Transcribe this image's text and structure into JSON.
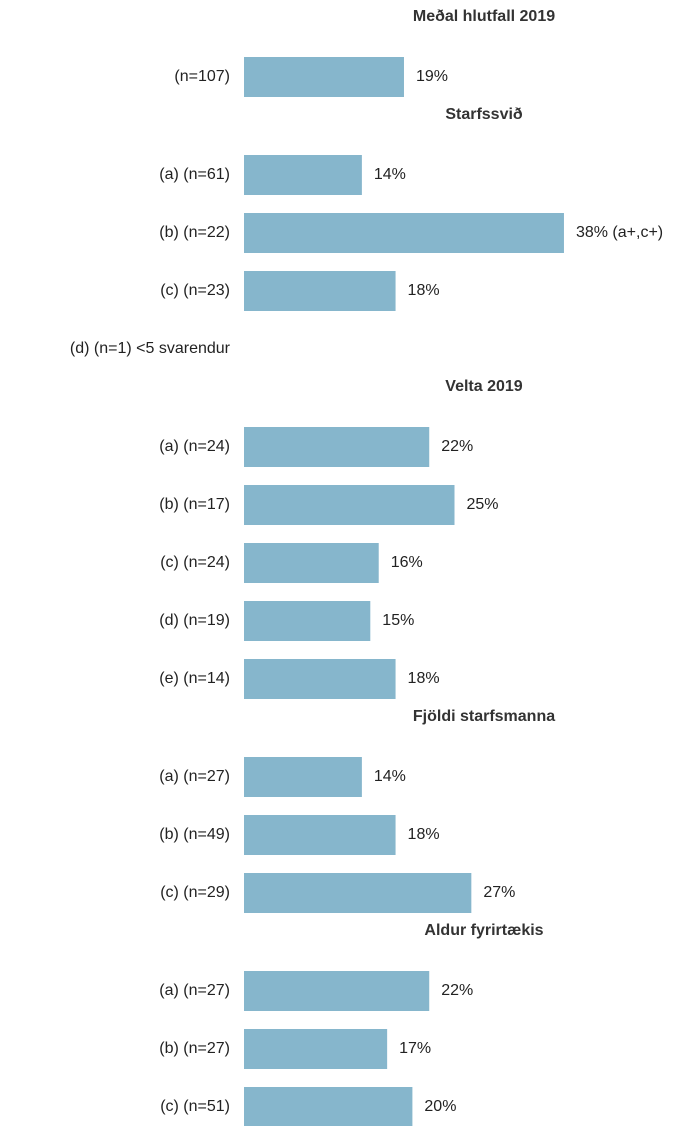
{
  "chart_data": [
    {
      "type": "bar",
      "title": "Meðal hlutfall 2019",
      "categories": [
        "(n=107)"
      ],
      "values": [
        19
      ],
      "value_labels": [
        "19%"
      ],
      "color": "#86b6cc"
    },
    {
      "type": "bar",
      "title": "Starfssvið",
      "categories": [
        "(a) (n=61)",
        "(b) (n=22)",
        "(c) (n=23)"
      ],
      "values": [
        14,
        38,
        18
      ],
      "value_labels": [
        "14%",
        "38% (a+,c+)",
        "18%"
      ],
      "color": "#86b6cc",
      "annotation": "(d) (n=1) <5 svarendur"
    },
    {
      "type": "bar",
      "title": "Velta 2019",
      "categories": [
        "(a) (n=24)",
        "(b) (n=17)",
        "(c) (n=24)",
        "(d) (n=19)",
        "(e) (n=14)"
      ],
      "values": [
        22,
        25,
        16,
        15,
        18
      ],
      "value_labels": [
        "22%",
        "25%",
        "16%",
        "15%",
        "18%"
      ],
      "color": "#86b6cc"
    },
    {
      "type": "bar",
      "title": "Fjöldi starfsmanna",
      "categories": [
        "(a) (n=27)",
        "(b) (n=49)",
        "(c) (n=29)"
      ],
      "values": [
        14,
        18,
        27
      ],
      "value_labels": [
        "14%",
        "18%",
        "27%"
      ],
      "color": "#86b6cc"
    },
    {
      "type": "bar",
      "title": "Aldur fyrirtækis",
      "categories": [
        "(a) (n=27)",
        "(b) (n=27)",
        "(c) (n=51)"
      ],
      "values": [
        22,
        17,
        20
      ],
      "value_labels": [
        "22%",
        "17%",
        "20%"
      ],
      "color": "#86b6cc"
    }
  ]
}
